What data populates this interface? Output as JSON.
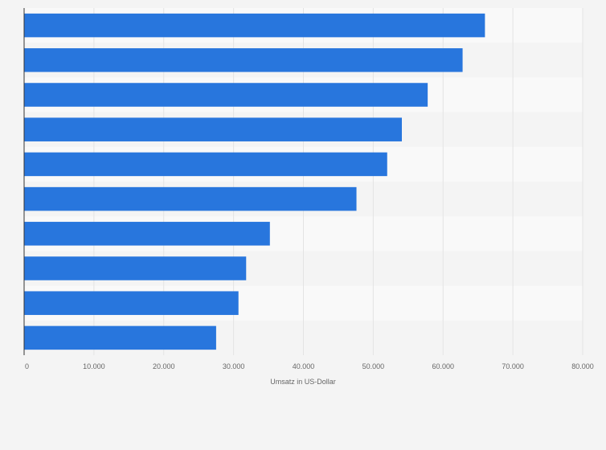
{
  "chart_data": {
    "type": "bar",
    "orientation": "horizontal",
    "categories": [
      "",
      "",
      "",
      "",
      "",
      "",
      "",
      "",
      "",
      ""
    ],
    "values": [
      66000,
      62800,
      57800,
      54100,
      52000,
      47600,
      35200,
      31800,
      30700,
      27500
    ],
    "xlabel": "Umsatz in US-Dollar",
    "ylabel": "",
    "xlim": [
      0,
      80000
    ],
    "ticks": [
      {
        "value": 0,
        "label": "0"
      },
      {
        "value": 10000,
        "label": "10.000"
      },
      {
        "value": 20000,
        "label": "20.000"
      },
      {
        "value": 30000,
        "label": "30.000"
      },
      {
        "value": 40000,
        "label": "40.000"
      },
      {
        "value": 50000,
        "label": "50.000"
      },
      {
        "value": 60000,
        "label": "60.000"
      },
      {
        "value": 70000,
        "label": "70.000"
      },
      {
        "value": 80000,
        "label": "80.000"
      }
    ],
    "grid": true,
    "colors": {
      "bar": "#2876dd",
      "band_light": "#f9f9f9",
      "band_dark": "#f4f4f4",
      "grid": "#e3e3e3",
      "axis": "#333333"
    }
  }
}
